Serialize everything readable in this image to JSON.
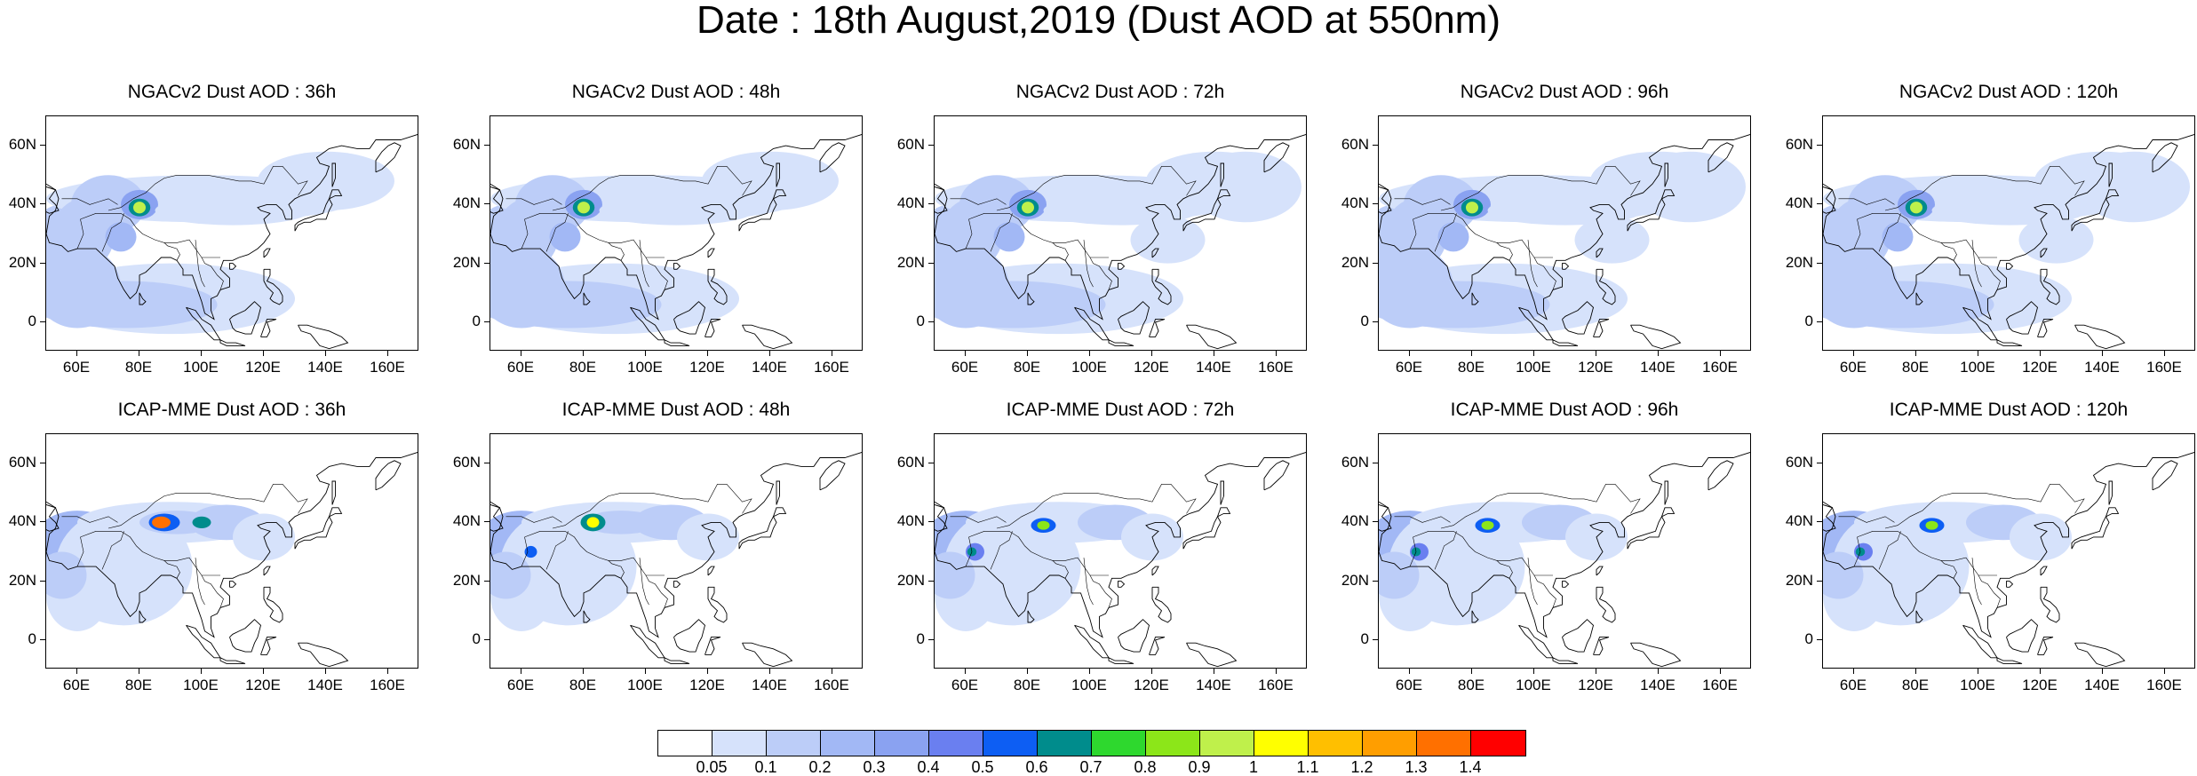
{
  "title": "Date : 18th August,2019 (Dust AOD at 550nm)",
  "panels": [
    {
      "title": "NGACv2 Dust AOD : 36h",
      "model": "NGACv2",
      "lead": "36h"
    },
    {
      "title": "NGACv2 Dust AOD : 48h",
      "model": "NGACv2",
      "lead": "48h"
    },
    {
      "title": "NGACv2 Dust AOD : 72h",
      "model": "NGACv2",
      "lead": "72h"
    },
    {
      "title": "NGACv2 Dust AOD : 96h",
      "model": "NGACv2",
      "lead": "96h"
    },
    {
      "title": "NGACv2 Dust AOD : 120h",
      "model": "NGACv2",
      "lead": "120h"
    },
    {
      "title": "ICAP-MME Dust AOD : 36h",
      "model": "ICAP-MME",
      "lead": "36h"
    },
    {
      "title": "ICAP-MME Dust AOD : 48h",
      "model": "ICAP-MME",
      "lead": "48h"
    },
    {
      "title": "ICAP-MME Dust AOD : 72h",
      "model": "ICAP-MME",
      "lead": "72h"
    },
    {
      "title": "ICAP-MME Dust AOD : 96h",
      "model": "ICAP-MME",
      "lead": "96h"
    },
    {
      "title": "ICAP-MME Dust AOD : 120h",
      "model": "ICAP-MME",
      "lead": "120h"
    }
  ],
  "axes": {
    "lat_ticks": [
      "60N",
      "40N",
      "20N",
      "0"
    ],
    "lon_ticks": [
      "60E",
      "80E",
      "100E",
      "120E",
      "140E",
      "160E"
    ],
    "lat_range": [
      -10,
      70
    ],
    "lon_range": [
      50,
      170
    ]
  },
  "colorbar": {
    "labels": [
      "0.05",
      "0.1",
      "0.2",
      "0.3",
      "0.4",
      "0.5",
      "0.6",
      "0.7",
      "0.8",
      "0.9",
      "1",
      "1.1",
      "1.2",
      "1.3",
      "1.4"
    ],
    "colors": [
      "#ffffff",
      "#d6e2fb",
      "#bccdf8",
      "#a2b8f5",
      "#8aa2f1",
      "#6a7ff0",
      "#0d5ef3",
      "#008c8c",
      "#2ed82e",
      "#8ce619",
      "#bff04b",
      "#ffff00",
      "#ffbf00",
      "#ff9e00",
      "#ff7000",
      "#ff0000"
    ]
  }
}
